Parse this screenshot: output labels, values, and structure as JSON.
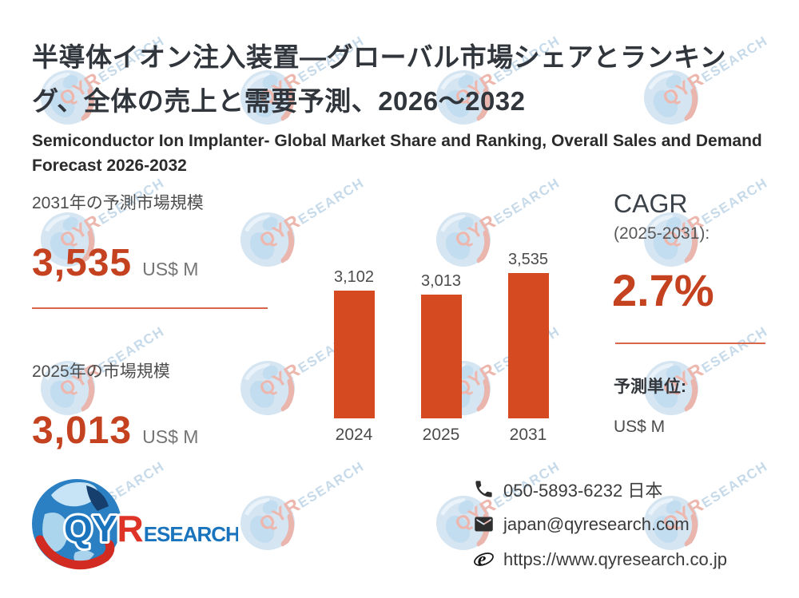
{
  "header": {
    "title_jp": "半導体イオン注入装置—グローバル市場シェアとランキング、全体の売上と需要予測、2026～2032",
    "title_en": "Semiconductor Ion Implanter- Global Market Share and Ranking, Overall Sales and Demand Forecast 2026-2032"
  },
  "stats": {
    "forecast_2031": {
      "label": "2031年の予測市場規模",
      "value": "3,535",
      "unit": "US$ M"
    },
    "market_2025": {
      "label": "2025年の市場規模",
      "value": "3,013",
      "unit": "US$ M"
    }
  },
  "cagr": {
    "title": "CAGR",
    "period": "(2025-2031):",
    "value": "2.7%"
  },
  "forecast_unit": {
    "label": "予測単位:",
    "value": "US$ M"
  },
  "chart_data": {
    "type": "bar",
    "categories": [
      "2024",
      "2025",
      "2031"
    ],
    "values": [
      3102,
      3013,
      3535
    ],
    "value_labels": [
      "3,102",
      "3,013",
      "3,535"
    ],
    "title": "",
    "xlabel": "",
    "ylabel": "",
    "ylim": [
      0,
      3535
    ],
    "grid": false,
    "legend": false,
    "bar_color": "#d54a21"
  },
  "logo": {
    "qy": "QY",
    "r": "R",
    "esearch": "ESEARCH"
  },
  "watermark": {
    "qyr": "QYR",
    "esearch": "ESEARCH"
  },
  "contact": {
    "phone": "050-5893-6232 日本",
    "email": "japan@qyresearch.com",
    "website": "https://www.qyresearch.co.jp"
  },
  "colors": {
    "accent_red": "#c4421f",
    "bar_orange": "#d54a21",
    "divider": "#d9664a",
    "logo_blue": "#1a74bd",
    "logo_red": "#de3427"
  }
}
